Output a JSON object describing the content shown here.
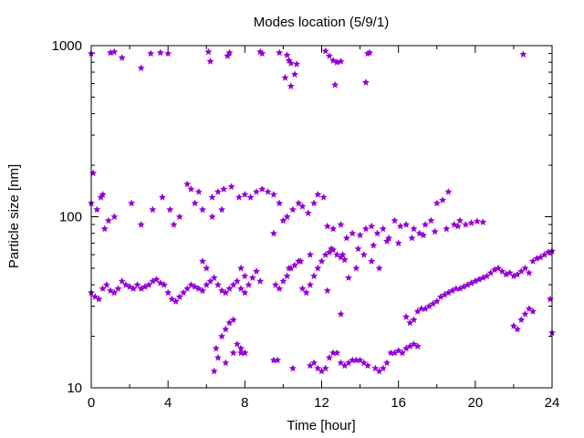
{
  "chart_data": {
    "type": "scatter",
    "title": "Modes location (5/9/1)",
    "xlabel": "Time [hour]",
    "ylabel": "Particle size [nm]",
    "xlim": [
      0,
      24
    ],
    "ylim": [
      10,
      1000
    ],
    "yscale": "log",
    "x_ticks": [
      0,
      4,
      8,
      12,
      16,
      20,
      24
    ],
    "y_ticks": [
      10,
      100,
      1000
    ],
    "grid": false,
    "legend": "none",
    "marker_color": "#9400d3",
    "series": [
      {
        "points": [
          [
            0.0,
            900
          ],
          [
            1.0,
            910
          ],
          [
            1.2,
            920
          ],
          [
            1.6,
            850
          ],
          [
            2.6,
            740
          ],
          [
            3.1,
            900
          ],
          [
            3.6,
            910
          ],
          [
            4.0,
            900
          ],
          [
            6.1,
            920
          ],
          [
            6.2,
            810
          ],
          [
            7.1,
            870
          ],
          [
            7.2,
            910
          ],
          [
            8.8,
            920
          ],
          [
            8.9,
            900
          ],
          [
            9.8,
            910
          ],
          [
            10.2,
            880
          ],
          [
            10.3,
            820
          ],
          [
            10.4,
            790
          ],
          [
            10.6,
            680
          ],
          [
            10.7,
            780
          ],
          [
            10.1,
            650
          ],
          [
            10.4,
            580
          ],
          [
            12.2,
            930
          ],
          [
            12.4,
            870
          ],
          [
            12.6,
            820
          ],
          [
            12.8,
            800
          ],
          [
            13.0,
            810
          ],
          [
            12.7,
            590
          ],
          [
            14.3,
            610
          ],
          [
            14.4,
            900
          ],
          [
            14.5,
            910
          ],
          [
            22.5,
            890
          ],
          [
            0.1,
            180
          ],
          [
            0.0,
            120
          ],
          [
            0.3,
            110
          ],
          [
            0.5,
            130
          ],
          [
            0.6,
            135
          ],
          [
            0.7,
            85
          ],
          [
            0.9,
            95
          ],
          [
            1.2,
            100
          ],
          [
            2.1,
            120
          ],
          [
            2.6,
            90
          ],
          [
            3.2,
            110
          ],
          [
            3.7,
            130
          ],
          [
            4.1,
            110
          ],
          [
            4.3,
            90
          ],
          [
            4.6,
            100
          ],
          [
            5.0,
            155
          ],
          [
            5.2,
            145
          ],
          [
            5.4,
            120
          ],
          [
            5.6,
            140
          ],
          [
            5.8,
            110
          ],
          [
            6.3,
            130
          ],
          [
            6.6,
            140
          ],
          [
            6.9,
            145
          ],
          [
            7.3,
            150
          ],
          [
            7.7,
            130
          ],
          [
            8.0,
            135
          ],
          [
            8.3,
            130
          ],
          [
            8.6,
            140
          ],
          [
            8.9,
            145
          ],
          [
            9.2,
            140
          ],
          [
            9.5,
            135
          ],
          [
            9.8,
            120
          ],
          [
            10.0,
            95
          ],
          [
            10.2,
            100
          ],
          [
            10.5,
            110
          ],
          [
            10.8,
            120
          ],
          [
            11.0,
            115
          ],
          [
            11.3,
            105
          ],
          [
            11.6,
            120
          ],
          [
            11.8,
            135
          ],
          [
            12.1,
            130
          ],
          [
            12.3,
            88
          ],
          [
            12.6,
            85
          ],
          [
            13.0,
            90
          ],
          [
            13.3,
            75
          ],
          [
            13.6,
            80
          ],
          [
            14.0,
            78
          ],
          [
            14.3,
            85
          ],
          [
            14.6,
            88
          ],
          [
            14.9,
            80
          ],
          [
            15.2,
            85
          ],
          [
            15.5,
            75
          ],
          [
            15.8,
            95
          ],
          [
            16.1,
            88
          ],
          [
            16.4,
            90
          ],
          [
            16.8,
            85
          ],
          [
            17.1,
            80
          ],
          [
            17.4,
            90
          ],
          [
            17.7,
            95
          ],
          [
            18.0,
            120
          ],
          [
            18.3,
            125
          ],
          [
            18.6,
            140
          ],
          [
            18.9,
            90
          ],
          [
            19.2,
            95
          ],
          [
            19.5,
            90
          ],
          [
            19.8,
            92
          ],
          [
            20.1,
            94
          ],
          [
            20.4,
            93
          ],
          [
            6.3,
            100
          ],
          [
            6.8,
            110
          ],
          [
            9.5,
            80
          ],
          [
            10.3,
            50
          ],
          [
            10.9,
            55
          ],
          [
            11.4,
            60
          ],
          [
            12.5,
            65
          ],
          [
            13.1,
            60
          ],
          [
            13.9,
            65
          ],
          [
            14.7,
            68
          ],
          [
            15.4,
            72
          ],
          [
            16.0,
            70
          ],
          [
            16.7,
            75
          ],
          [
            17.3,
            78
          ],
          [
            17.9,
            82
          ],
          [
            18.5,
            85
          ],
          [
            19.1,
            88
          ],
          [
            0.0,
            36
          ],
          [
            0.2,
            34
          ],
          [
            0.4,
            33
          ],
          [
            0.6,
            38
          ],
          [
            0.8,
            40
          ],
          [
            1.0,
            37
          ],
          [
            1.2,
            36
          ],
          [
            1.4,
            38
          ],
          [
            1.6,
            42
          ],
          [
            1.8,
            40
          ],
          [
            2.0,
            39
          ],
          [
            2.2,
            38
          ],
          [
            2.4,
            40
          ],
          [
            2.6,
            38
          ],
          [
            2.8,
            39
          ],
          [
            3.0,
            40
          ],
          [
            3.2,
            42
          ],
          [
            3.4,
            43
          ],
          [
            3.6,
            41
          ],
          [
            3.8,
            40
          ],
          [
            4.0,
            36
          ],
          [
            4.2,
            33
          ],
          [
            4.4,
            32
          ],
          [
            4.6,
            34
          ],
          [
            4.8,
            36
          ],
          [
            5.0,
            38
          ],
          [
            5.2,
            40
          ],
          [
            5.4,
            39
          ],
          [
            5.6,
            38
          ],
          [
            5.8,
            37
          ],
          [
            6.0,
            40
          ],
          [
            6.2,
            42
          ],
          [
            6.4,
            44
          ],
          [
            6.6,
            40
          ],
          [
            6.8,
            37
          ],
          [
            7.0,
            36
          ],
          [
            7.2,
            38
          ],
          [
            7.4,
            40
          ],
          [
            7.6,
            42
          ],
          [
            7.8,
            38
          ],
          [
            8.0,
            36
          ],
          [
            8.2,
            40
          ],
          [
            8.4,
            44
          ],
          [
            8.6,
            48
          ],
          [
            8.8,
            42
          ],
          [
            5.8,
            55
          ],
          [
            6.0,
            50
          ],
          [
            7.8,
            50
          ],
          [
            8.0,
            45
          ],
          [
            9.6,
            40
          ],
          [
            9.8,
            38
          ],
          [
            10.0,
            42
          ],
          [
            10.2,
            45
          ],
          [
            10.4,
            50
          ],
          [
            10.6,
            52
          ],
          [
            10.8,
            55
          ],
          [
            11.0,
            38
          ],
          [
            11.2,
            36
          ],
          [
            11.4,
            40
          ],
          [
            11.6,
            45
          ],
          [
            11.8,
            50
          ],
          [
            12.0,
            55
          ],
          [
            12.2,
            60
          ],
          [
            12.4,
            62
          ],
          [
            12.6,
            64
          ],
          [
            12.8,
            60
          ],
          [
            13.0,
            58
          ],
          [
            13.2,
            56
          ],
          [
            12.3,
            37
          ],
          [
            13.0,
            27
          ],
          [
            13.4,
            44
          ],
          [
            13.8,
            50
          ],
          [
            14.2,
            60
          ],
          [
            14.6,
            55
          ],
          [
            15.0,
            50
          ],
          [
            16.4,
            26
          ],
          [
            16.6,
            24
          ],
          [
            16.8,
            25
          ],
          [
            17.0,
            28
          ],
          [
            17.2,
            29
          ],
          [
            17.4,
            29
          ],
          [
            17.6,
            30
          ],
          [
            17.8,
            31
          ],
          [
            18.0,
            32
          ],
          [
            18.2,
            34
          ],
          [
            18.4,
            35
          ],
          [
            18.6,
            36
          ],
          [
            18.8,
            37
          ],
          [
            19.0,
            38
          ],
          [
            19.2,
            38
          ],
          [
            19.4,
            39
          ],
          [
            19.6,
            40
          ],
          [
            19.8,
            41
          ],
          [
            20.0,
            42
          ],
          [
            20.2,
            43
          ],
          [
            20.4,
            44
          ],
          [
            20.6,
            45
          ],
          [
            20.8,
            47
          ],
          [
            21.0,
            49
          ],
          [
            21.2,
            50
          ],
          [
            21.4,
            48
          ],
          [
            21.6,
            46
          ],
          [
            21.8,
            47
          ],
          [
            22.0,
            45
          ],
          [
            22.2,
            46
          ],
          [
            22.4,
            48
          ],
          [
            22.6,
            50
          ],
          [
            22.8,
            47
          ],
          [
            23.0,
            55
          ],
          [
            23.2,
            57
          ],
          [
            23.4,
            58
          ],
          [
            23.6,
            60
          ],
          [
            23.8,
            62
          ],
          [
            24.0,
            63
          ],
          [
            22.0,
            23
          ],
          [
            22.2,
            22
          ],
          [
            22.4,
            25
          ],
          [
            22.6,
            27
          ],
          [
            22.8,
            29
          ],
          [
            23.0,
            28
          ],
          [
            23.9,
            33
          ],
          [
            24.0,
            21
          ],
          [
            6.5,
            17
          ],
          [
            6.6,
            15
          ],
          [
            6.8,
            20
          ],
          [
            7.0,
            22
          ],
          [
            7.2,
            24
          ],
          [
            7.4,
            25
          ],
          [
            7.6,
            18
          ],
          [
            7.8,
            16
          ],
          [
            8.0,
            16
          ],
          [
            6.4,
            12.5
          ],
          [
            7.0,
            14
          ],
          [
            7.4,
            16
          ],
          [
            7.8,
            17
          ],
          [
            8.0,
            16
          ],
          [
            9.5,
            14.5
          ],
          [
            9.7,
            14.5
          ],
          [
            10.5,
            13
          ],
          [
            11.4,
            13.5
          ],
          [
            11.6,
            14
          ],
          [
            11.8,
            13
          ],
          [
            12.0,
            12.5
          ],
          [
            12.2,
            13
          ],
          [
            12.4,
            15
          ],
          [
            12.6,
            16
          ],
          [
            12.8,
            16
          ],
          [
            13.0,
            14
          ],
          [
            13.2,
            13.5
          ],
          [
            13.4,
            14
          ],
          [
            13.6,
            14.5
          ],
          [
            13.8,
            14.5
          ],
          [
            14.0,
            14.5
          ],
          [
            14.2,
            14
          ],
          [
            14.4,
            13.5
          ],
          [
            14.8,
            13
          ],
          [
            15.0,
            12.5
          ],
          [
            15.2,
            13
          ],
          [
            15.4,
            14
          ],
          [
            15.6,
            16
          ],
          [
            15.8,
            16
          ],
          [
            16.0,
            16.5
          ],
          [
            16.2,
            16
          ],
          [
            16.4,
            17
          ],
          [
            16.6,
            17.5
          ],
          [
            16.8,
            18
          ],
          [
            17.0,
            17.5
          ]
        ]
      }
    ]
  }
}
